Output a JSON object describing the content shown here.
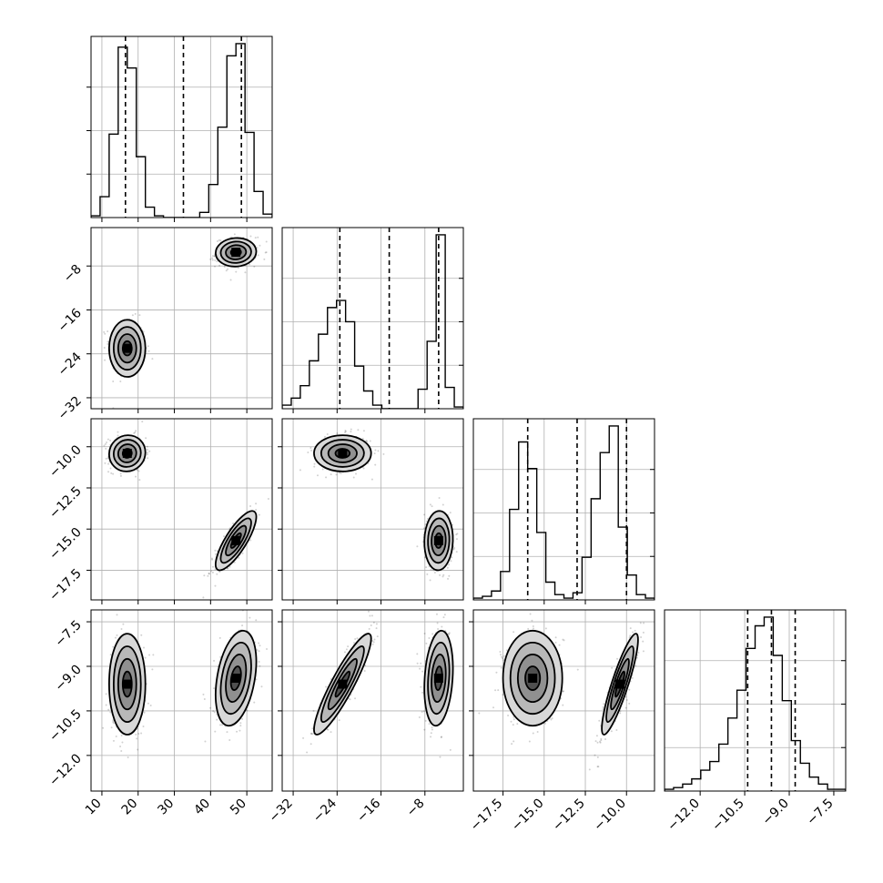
{
  "chart_data": {
    "type": "corner",
    "grid": true,
    "parameters": [
      {
        "range": [
          7,
          57
        ],
        "ticks": [
          10,
          20,
          30,
          40,
          50
        ],
        "tick_labels": [
          "10",
          "20",
          "30",
          "40",
          "50"
        ],
        "quantiles": [
          16.5,
          32.5,
          48.5
        ],
        "hist_bins": [
          7,
          9.5,
          12,
          14.5,
          17,
          19.5,
          22,
          24.5,
          27,
          29.5,
          32,
          34.5,
          37,
          39.5,
          42,
          44.5,
          47,
          49.5,
          52,
          54.5,
          57
        ],
        "hist_counts": [
          0.01,
          0.12,
          0.48,
          0.98,
          0.86,
          0.35,
          0.06,
          0.01,
          0,
          0,
          0,
          0,
          0.03,
          0.19,
          0.52,
          0.93,
          1.0,
          0.49,
          0.15,
          0.02
        ]
      },
      {
        "range": [
          -34,
          -1
        ],
        "ticks": [
          -32,
          -24,
          -16,
          -8
        ],
        "tick_labels": [
          "−32",
          "−24",
          "−16",
          "−8"
        ],
        "quantiles": [
          -23.5,
          -14.5,
          -5.5
        ],
        "hist_bins": [
          -34,
          -32.35,
          -30.7,
          -29.05,
          -27.4,
          -25.75,
          -24.1,
          -22.45,
          -20.8,
          -19.15,
          -17.5,
          -15.85,
          -14.2,
          -12.55,
          -10.9,
          -9.25,
          -7.6,
          -5.95,
          -4.3,
          -2.65,
          -1
        ],
        "hist_counts": [
          0.02,
          0.06,
          0.13,
          0.27,
          0.42,
          0.57,
          0.61,
          0.49,
          0.24,
          0.1,
          0.02,
          0,
          0,
          0,
          0,
          0.11,
          0.38,
          0.98,
          0.12,
          0.01
        ]
      },
      {
        "range": [
          -19.3,
          -8.3
        ],
        "ticks": [
          -17.5,
          -15.0,
          -12.5,
          -10.0
        ],
        "tick_labels": [
          "−17.5",
          "−15.0",
          "−12.5",
          "−10.0"
        ],
        "quantiles": [
          -16.0,
          -13.0,
          -10.0
        ],
        "hist_bins": [
          -19.3,
          -18.75,
          -18.2,
          -17.65,
          -17.1,
          -16.55,
          -16.0,
          -15.45,
          -14.9,
          -14.35,
          -13.8,
          -13.25,
          -12.7,
          -12.15,
          -11.6,
          -11.05,
          -10.5,
          -9.95,
          -9.4,
          -8.85,
          -8.3
        ],
        "hist_counts": [
          0.01,
          0.02,
          0.05,
          0.16,
          0.51,
          0.89,
          0.74,
          0.38,
          0.1,
          0.03,
          0.01,
          0.04,
          0.24,
          0.57,
          0.83,
          0.98,
          0.41,
          0.14,
          0.03,
          0.01
        ]
      },
      {
        "range": [
          -13.2,
          -7.1
        ],
        "ticks": [
          -12.0,
          -10.5,
          -9.0,
          -7.5
        ],
        "tick_labels": [
          "−12.0",
          "−10.5",
          "−9.0",
          "−7.5"
        ],
        "quantiles": [
          -10.4,
          -9.6,
          -8.8
        ],
        "hist_bins": [
          -13.2,
          -12.895,
          -12.59,
          -12.285,
          -11.98,
          -11.675,
          -11.37,
          -11.065,
          -10.76,
          -10.455,
          -10.15,
          -9.845,
          -9.54,
          -9.235,
          -8.93,
          -8.625,
          -8.32,
          -8.015,
          -7.71,
          -7.405,
          -7.1
        ],
        "hist_counts": [
          0.01,
          0.02,
          0.04,
          0.07,
          0.12,
          0.17,
          0.27,
          0.42,
          0.58,
          0.82,
          0.95,
          1.0,
          0.78,
          0.52,
          0.29,
          0.16,
          0.08,
          0.04,
          0.01,
          0.01
        ]
      }
    ],
    "clusters": [
      {
        "center": [
          17,
          -23,
          -10.4,
          -9.6
        ],
        "sd": [
          2.5,
          2.6,
          0.55,
          0.85
        ],
        "weight": 0.5
      },
      {
        "center": [
          47,
          -5.5,
          -15.7,
          -9.4
        ],
        "sd": [
          2.8,
          1.3,
          0.9,
          0.8
        ],
        "weight": 0.5
      }
    ],
    "correlations": {
      "0-1": [
        0.0,
        0.05
      ],
      "0-2": [
        0.05,
        0.8
      ],
      "0-3": [
        0.0,
        0.35
      ],
      "1-2": [
        0.0,
        0.05
      ],
      "1-3": [
        0.9,
        0.2
      ],
      "2-3": [
        0.88,
        0.0
      ]
    }
  }
}
